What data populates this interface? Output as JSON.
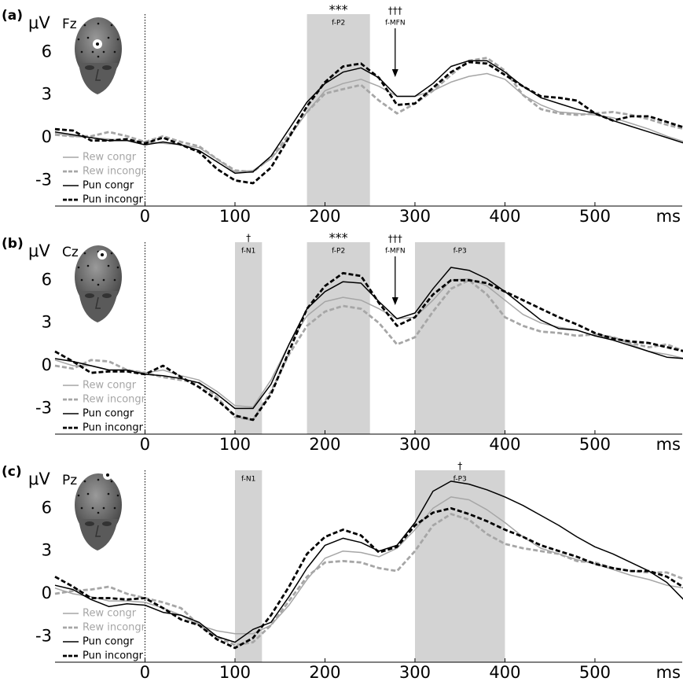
{
  "chart_data": [
    {
      "type": "line",
      "panel_label": "(a)",
      "y_label": "μV",
      "electrode": "Fz",
      "x_label": "ms",
      "x": [
        -100,
        -80,
        -60,
        -40,
        -20,
        0,
        20,
        40,
        60,
        80,
        100,
        120,
        140,
        160,
        180,
        200,
        220,
        240,
        260,
        280,
        300,
        320,
        340,
        360,
        380,
        400,
        420,
        440,
        460,
        480,
        500,
        520,
        540,
        560,
        580,
        600
      ],
      "series": [
        {
          "name": "Rew congr",
          "color": "#a6a6a6",
          "linestyle": "solid",
          "values": [
            0.3,
            0.1,
            0.0,
            -0.1,
            -0.2,
            -0.3,
            -0.4,
            -0.5,
            -0.7,
            -1.5,
            -2.4,
            -2.3,
            -1.5,
            0.0,
            1.8,
            3.3,
            3.8,
            4.1,
            3.6,
            2.9,
            2.9,
            3.3,
            3.9,
            4.3,
            4.5,
            4.1,
            3.0,
            2.3,
            1.8,
            1.7,
            1.6,
            1.4,
            1.0,
            0.6,
            0.1,
            -0.3
          ]
        },
        {
          "name": "Rew incongr",
          "color": "#a6a6a6",
          "linestyle": "dashed",
          "values": [
            0.2,
            0.1,
            0.1,
            0.4,
            0.1,
            -0.3,
            0.1,
            -0.3,
            -0.6,
            -1.5,
            -2.3,
            -2.4,
            -1.4,
            0.2,
            1.8,
            3.1,
            3.4,
            3.7,
            2.6,
            1.7,
            2.4,
            3.3,
            4.4,
            5.4,
            5.6,
            4.7,
            3.0,
            2.0,
            1.7,
            1.6,
            1.7,
            1.8,
            1.6,
            1.3,
            0.9,
            0.6
          ]
        },
        {
          "name": "Pun congr",
          "color": "#000000",
          "linestyle": "solid",
          "values": [
            0.4,
            0.2,
            0.0,
            -0.2,
            -0.2,
            -0.5,
            -0.3,
            -0.5,
            -0.9,
            -1.7,
            -2.5,
            -2.4,
            -1.3,
            0.6,
            2.5,
            3.8,
            4.6,
            4.9,
            4.2,
            2.9,
            2.9,
            3.8,
            5.0,
            5.4,
            5.4,
            4.6,
            3.6,
            2.8,
            2.4,
            2.0,
            1.7,
            1.2,
            0.8,
            0.4,
            0.0,
            -0.4
          ]
        },
        {
          "name": "Pun incongr",
          "color": "#000000",
          "linestyle": "dashed",
          "values": [
            0.6,
            0.5,
            -0.2,
            -0.2,
            -0.1,
            -0.4,
            0.0,
            -0.5,
            -1.0,
            -2.2,
            -3.0,
            -3.2,
            -2.1,
            0.0,
            2.2,
            3.9,
            5.0,
            5.2,
            4.2,
            2.3,
            2.4,
            3.5,
            4.6,
            5.3,
            5.2,
            4.4,
            3.6,
            2.9,
            2.8,
            2.6,
            1.7,
            1.2,
            1.5,
            1.5,
            1.1,
            0.7
          ]
        }
      ],
      "xlim": [
        -100,
        597
      ],
      "ylim": [
        -4.8,
        9
      ],
      "xticks": [
        0,
        100,
        200,
        300,
        400,
        500
      ],
      "yticks": [
        -3,
        0,
        3,
        6
      ],
      "legend": "lower left",
      "windows": [
        {
          "label": "f-P2",
          "start": 180,
          "end": 250,
          "marker": "***"
        }
      ],
      "arrows": [
        {
          "label": "f-MFN",
          "x": 278,
          "marker": "†††"
        }
      ]
    },
    {
      "type": "line",
      "panel_label": "(b)",
      "y_label": "μV",
      "electrode": "Cz",
      "x_label": "ms",
      "x": [
        -100,
        -80,
        -60,
        -40,
        -20,
        0,
        20,
        40,
        60,
        80,
        100,
        120,
        140,
        160,
        180,
        200,
        220,
        240,
        260,
        280,
        300,
        320,
        340,
        360,
        380,
        400,
        420,
        440,
        460,
        480,
        500,
        520,
        540,
        560,
        580,
        600
      ],
      "series": [
        {
          "name": "Rew congr",
          "color": "#a6a6a6",
          "linestyle": "solid",
          "values": [
            0.4,
            0.0,
            0.0,
            -0.3,
            -0.3,
            -0.5,
            -0.3,
            -0.7,
            -1.0,
            -1.8,
            -2.8,
            -2.9,
            -1.0,
            1.5,
            3.5,
            4.5,
            4.8,
            4.6,
            4.0,
            3.3,
            3.4,
            4.6,
            6.0,
            6.1,
            5.6,
            4.6,
            3.6,
            3.0,
            2.7,
            2.5,
            2.1,
            2.0,
            1.5,
            1.0,
            0.8,
            0.5
          ]
        },
        {
          "name": "Rew incongr",
          "color": "#a6a6a6",
          "linestyle": "dashed",
          "values": [
            0.0,
            -0.2,
            0.4,
            0.3,
            -0.3,
            -0.5,
            -0.8,
            -1.0,
            -1.2,
            -2.2,
            -3.6,
            -3.8,
            -1.8,
            0.8,
            2.8,
            3.8,
            4.2,
            4.0,
            3.0,
            1.5,
            2.0,
            3.8,
            5.4,
            6.0,
            5.0,
            3.4,
            2.8,
            2.4,
            2.3,
            2.1,
            2.2,
            2.0,
            1.6,
            1.3,
            1.5,
            1.0
          ]
        },
        {
          "name": "Pun congr",
          "color": "#000000",
          "linestyle": "solid",
          "values": [
            0.5,
            0.3,
            0.0,
            -0.3,
            -0.3,
            -0.6,
            -0.7,
            -0.9,
            -1.2,
            -2.0,
            -3.0,
            -3.0,
            -1.3,
            1.5,
            4.0,
            5.2,
            5.9,
            5.8,
            4.5,
            3.3,
            3.7,
            5.4,
            6.9,
            6.7,
            6.1,
            5.2,
            4.2,
            3.2,
            2.6,
            2.5,
            2.1,
            1.8,
            1.4,
            1.0,
            0.6,
            0.5
          ]
        },
        {
          "name": "Pun incongr",
          "color": "#000000",
          "linestyle": "dashed",
          "values": [
            1.0,
            0.3,
            -0.5,
            -0.4,
            -0.4,
            -0.6,
            0.0,
            -0.8,
            -1.5,
            -2.4,
            -3.5,
            -3.8,
            -2.0,
            1.0,
            4.0,
            5.6,
            6.5,
            6.3,
            4.4,
            2.8,
            3.4,
            5.0,
            6.0,
            6.0,
            5.8,
            5.2,
            4.6,
            4.0,
            3.4,
            2.9,
            2.3,
            1.9,
            1.7,
            1.6,
            1.3,
            1.0
          ]
        }
      ],
      "xlim": [
        -100,
        597
      ],
      "ylim": [
        -4.8,
        9
      ],
      "xticks": [
        0,
        100,
        200,
        300,
        400,
        500
      ],
      "yticks": [
        -3,
        0,
        3,
        6
      ],
      "legend": "lower left",
      "windows": [
        {
          "label": "f-N1",
          "start": 100,
          "end": 130,
          "marker": "†"
        },
        {
          "label": "f-P2",
          "start": 180,
          "end": 250,
          "marker": "***"
        },
        {
          "label": "f-P3",
          "start": 300,
          "end": 400
        }
      ],
      "arrows": [
        {
          "label": "f-MFN",
          "x": 278,
          "marker": "†††"
        }
      ]
    },
    {
      "type": "line",
      "panel_label": "(c)",
      "y_label": "μV",
      "electrode": "Pz",
      "x_label": "ms",
      "x": [
        -100,
        -80,
        -60,
        -40,
        -20,
        0,
        20,
        40,
        60,
        80,
        100,
        120,
        140,
        160,
        180,
        200,
        220,
        240,
        260,
        280,
        300,
        320,
        340,
        360,
        380,
        400,
        420,
        440,
        460,
        480,
        500,
        520,
        540,
        560,
        580,
        600
      ],
      "series": [
        {
          "name": "Rew congr",
          "color": "#a6a6a6",
          "linestyle": "solid",
          "values": [
            0.4,
            0.0,
            -0.2,
            -0.5,
            -0.5,
            -0.6,
            -1.0,
            -1.5,
            -2.2,
            -2.6,
            -2.8,
            -2.8,
            -2.2,
            -0.8,
            1.0,
            2.5,
            3.0,
            2.9,
            2.6,
            3.2,
            4.5,
            6.0,
            6.8,
            6.6,
            5.9,
            5.0,
            4.0,
            3.2,
            2.8,
            2.4,
            2.1,
            1.7,
            1.3,
            1.0,
            0.6,
            0.4
          ]
        },
        {
          "name": "Rew incongr",
          "color": "#a6a6a6",
          "linestyle": "dashed",
          "values": [
            0.0,
            0.2,
            0.3,
            0.5,
            0.0,
            -0.3,
            -0.6,
            -1.0,
            -2.2,
            -3.0,
            -3.6,
            -3.4,
            -2.2,
            -0.5,
            1.2,
            2.2,
            2.3,
            2.2,
            1.8,
            1.6,
            3.0,
            4.8,
            5.6,
            5.2,
            4.2,
            3.5,
            3.2,
            3.0,
            2.8,
            2.3,
            2.2,
            1.8,
            1.6,
            1.5,
            1.5,
            1.0
          ]
        },
        {
          "name": "Pun congr",
          "color": "#000000",
          "linestyle": "solid",
          "values": [
            0.6,
            0.3,
            -0.4,
            -0.9,
            -0.7,
            -0.8,
            -1.3,
            -1.5,
            -2.0,
            -3.0,
            -3.4,
            -2.5,
            -2.0,
            -0.2,
            1.8,
            3.4,
            3.9,
            3.6,
            3.0,
            3.4,
            5.0,
            7.2,
            7.9,
            7.7,
            7.3,
            6.8,
            6.2,
            5.5,
            4.8,
            4.0,
            3.3,
            2.8,
            2.2,
            1.6,
            0.8,
            -0.5
          ]
        },
        {
          "name": "Pun incongr",
          "color": "#000000",
          "linestyle": "dashed",
          "values": [
            1.2,
            0.5,
            -0.3,
            -0.3,
            -0.4,
            -0.3,
            -1.0,
            -1.8,
            -2.2,
            -3.2,
            -3.8,
            -3.1,
            -1.5,
            0.5,
            2.8,
            4.0,
            4.5,
            4.1,
            2.9,
            3.3,
            4.8,
            5.7,
            6.0,
            5.6,
            5.1,
            4.5,
            4.0,
            3.4,
            3.0,
            2.6,
            2.1,
            1.8,
            1.6,
            1.6,
            1.2,
            0.4
          ]
        }
      ],
      "xlim": [
        -100,
        597
      ],
      "ylim": [
        -4.8,
        9
      ],
      "xticks": [
        0,
        100,
        200,
        300,
        400,
        500
      ],
      "yticks": [
        -3,
        0,
        3,
        6
      ],
      "legend": "lower left",
      "windows": [
        {
          "label": "f-N1",
          "start": 100,
          "end": 130
        },
        {
          "label": "f-P3",
          "start": 300,
          "end": 400,
          "marker": "†"
        }
      ],
      "arrows": []
    }
  ]
}
